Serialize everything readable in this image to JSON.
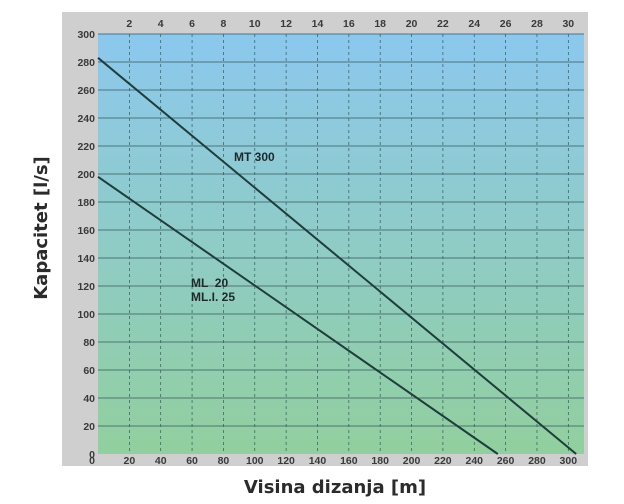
{
  "chart_data": {
    "type": "line",
    "xlabel": "Visina dizanja [m]",
    "ylabel": "Kapacitet [l/s]",
    "x_bottom_ticks": [
      "0",
      "20",
      "40",
      "60",
      "80",
      "100",
      "120",
      "140",
      "160",
      "180",
      "200",
      "220",
      "240",
      "260",
      "280",
      "300"
    ],
    "x_top_ticks": [
      "2",
      "4",
      "6",
      "8",
      "10",
      "12",
      "14",
      "16",
      "18",
      "20",
      "22",
      "24",
      "26",
      "28",
      "30"
    ],
    "y_ticks": [
      "0",
      "20",
      "40",
      "60",
      "80",
      "100",
      "120",
      "140",
      "160",
      "180",
      "200",
      "220",
      "240",
      "260",
      "280",
      "300"
    ],
    "xlim": [
      0,
      310
    ],
    "ylim": [
      0,
      300
    ],
    "grid": true,
    "series": [
      {
        "name": "MT 300",
        "x": [
          0,
          305
        ],
        "y": [
          283,
          0
        ]
      },
      {
        "name": "ML  20",
        "name2": "ML.I. 25",
        "x": [
          0,
          255
        ],
        "y": [
          198,
          0
        ]
      }
    ],
    "colors": {
      "plot_top": "#8cc8ee",
      "plot_bottom": "#92cf9e",
      "frame": "#cfcfcf",
      "line": "#1f3d3b",
      "grid": "#35585c"
    }
  }
}
